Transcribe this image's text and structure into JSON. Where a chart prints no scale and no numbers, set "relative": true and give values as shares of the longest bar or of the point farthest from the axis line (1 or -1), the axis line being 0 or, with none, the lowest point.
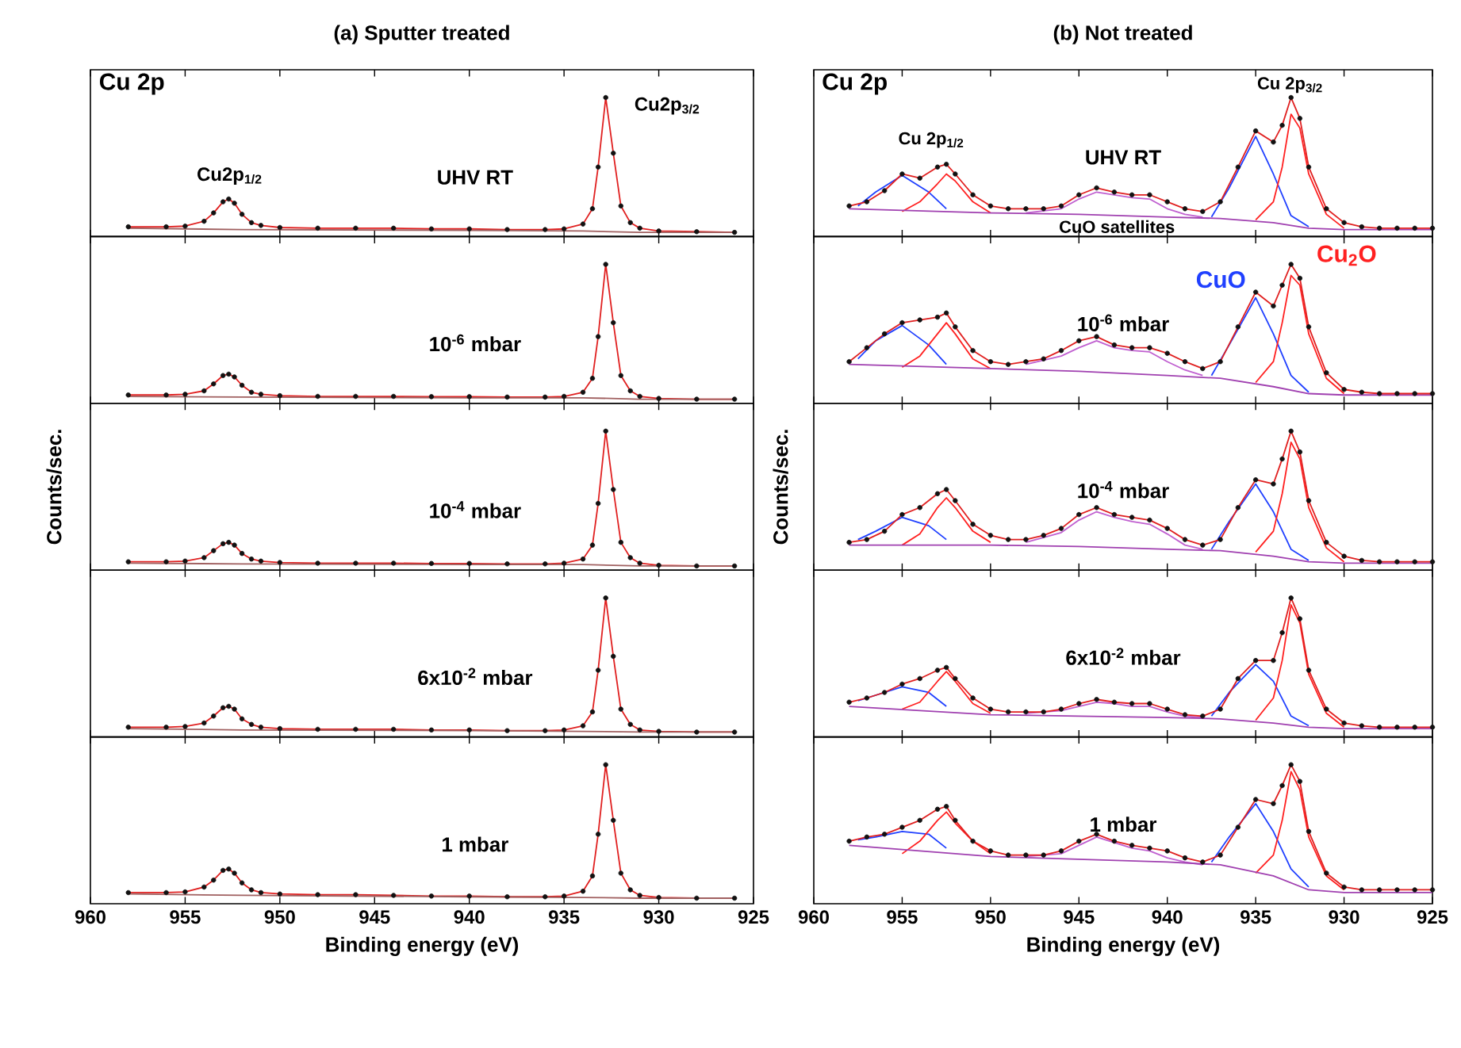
{
  "chart_data": [
    {
      "type": "line",
      "relative": true,
      "title": "(a) Sputter treated",
      "xlim": [
        960,
        925
      ],
      "xticks": [
        960,
        955,
        950,
        945,
        940,
        935,
        930,
        925
      ],
      "tick_labels": false,
      "x": [
        958,
        956,
        955,
        954,
        953.5,
        953,
        952.7,
        952.4,
        952,
        951.5,
        951,
        950,
        948,
        946,
        944,
        942,
        940,
        938,
        936,
        935,
        934,
        933.5,
        933.2,
        932.8,
        932.4,
        932,
        931.5,
        931,
        930,
        928,
        926
      ],
      "annotations": [
        "Cu 2p",
        "Cu2p$_{1/2}$",
        "Cu2p$_{3/2}$",
        "UHV RT"
      ],
      "series": [
        {
          "type": "scatter",
          "marker": "circle",
          "color": "#111111",
          "values": [
            0.07,
            0.07,
            0.075,
            0.11,
            0.17,
            0.25,
            0.27,
            0.24,
            0.16,
            0.1,
            0.08,
            0.065,
            0.06,
            0.06,
            0.06,
            0.055,
            0.055,
            0.05,
            0.05,
            0.055,
            0.09,
            0.2,
            0.5,
            1,
            0.6,
            0.22,
            0.1,
            0.06,
            0.04,
            0.035,
            0.03
          ]
        },
        {
          "color": "#e02020",
          "values": [
            0.07,
            0.07,
            0.075,
            0.11,
            0.17,
            0.25,
            0.27,
            0.24,
            0.16,
            0.1,
            0.08,
            0.065,
            0.06,
            0.06,
            0.06,
            0.055,
            0.055,
            0.05,
            0.05,
            0.055,
            0.09,
            0.2,
            0.5,
            1,
            0.6,
            0.22,
            0.1,
            0.06,
            0.04,
            0.035,
            0.03
          ]
        },
        {
          "color": "#a06060",
          "x": [
            958,
            952,
            940,
            934,
            931,
            926
          ],
          "values": [
            0.06,
            0.05,
            0.045,
            0.04,
            0.03,
            0.03
          ]
        }
      ]
    },
    {
      "type": "line",
      "relative": true,
      "xlim": [
        960,
        925
      ],
      "xticks": [
        960,
        955,
        950,
        945,
        940,
        935,
        930,
        925
      ],
      "tick_labels": false,
      "x": [
        958,
        956,
        955,
        954,
        953.5,
        953,
        952.7,
        952.4,
        952,
        951.5,
        951,
        950,
        948,
        946,
        944,
        942,
        940,
        938,
        936,
        935,
        934,
        933.5,
        933.2,
        932.8,
        932.4,
        932,
        931.5,
        931,
        930,
        928,
        926
      ],
      "annotations": [
        "10$^{-6}$ mbar"
      ],
      "series": [
        {
          "type": "scatter",
          "marker": "circle",
          "color": "#111111",
          "values": [
            0.06,
            0.06,
            0.065,
            0.09,
            0.14,
            0.2,
            0.21,
            0.19,
            0.13,
            0.08,
            0.065,
            0.055,
            0.05,
            0.05,
            0.05,
            0.048,
            0.048,
            0.045,
            0.045,
            0.05,
            0.08,
            0.18,
            0.48,
            1,
            0.58,
            0.2,
            0.09,
            0.05,
            0.035,
            0.03,
            0.03
          ]
        },
        {
          "color": "#e02020",
          "values": [
            0.06,
            0.06,
            0.065,
            0.09,
            0.14,
            0.2,
            0.21,
            0.19,
            0.13,
            0.08,
            0.065,
            0.055,
            0.05,
            0.05,
            0.05,
            0.048,
            0.048,
            0.045,
            0.045,
            0.05,
            0.08,
            0.18,
            0.48,
            1,
            0.58,
            0.2,
            0.09,
            0.05,
            0.035,
            0.03,
            0.03
          ]
        },
        {
          "color": "#a06060",
          "x": [
            958,
            952,
            940,
            934,
            931,
            926
          ],
          "values": [
            0.05,
            0.045,
            0.04,
            0.04,
            0.03,
            0.03
          ]
        }
      ]
    },
    {
      "type": "line",
      "relative": true,
      "ylabel": "Counts/sec.",
      "xlim": [
        960,
        925
      ],
      "xticks": [
        960,
        955,
        950,
        945,
        940,
        935,
        930,
        925
      ],
      "tick_labels": false,
      "x": [
        958,
        956,
        955,
        954,
        953.5,
        953,
        952.7,
        952.4,
        952,
        951.5,
        951,
        950,
        948,
        946,
        944,
        942,
        940,
        938,
        936,
        935,
        934,
        933.5,
        933.2,
        932.8,
        932.4,
        932,
        931.5,
        931,
        930,
        928,
        926
      ],
      "annotations": [
        "10$^{-4}$ mbar"
      ],
      "series": [
        {
          "type": "scatter",
          "marker": "circle",
          "color": "#111111",
          "values": [
            0.06,
            0.06,
            0.065,
            0.09,
            0.14,
            0.19,
            0.2,
            0.18,
            0.12,
            0.08,
            0.065,
            0.055,
            0.05,
            0.05,
            0.05,
            0.048,
            0.048,
            0.045,
            0.045,
            0.05,
            0.08,
            0.18,
            0.48,
            1,
            0.58,
            0.2,
            0.09,
            0.05,
            0.035,
            0.03,
            0.03
          ]
        },
        {
          "color": "#e02020",
          "values": [
            0.06,
            0.06,
            0.065,
            0.09,
            0.14,
            0.19,
            0.2,
            0.18,
            0.12,
            0.08,
            0.065,
            0.055,
            0.05,
            0.05,
            0.05,
            0.048,
            0.048,
            0.045,
            0.045,
            0.05,
            0.08,
            0.18,
            0.48,
            1,
            0.58,
            0.2,
            0.09,
            0.05,
            0.035,
            0.03,
            0.03
          ]
        },
        {
          "color": "#a06060",
          "x": [
            958,
            952,
            940,
            934,
            931,
            926
          ],
          "values": [
            0.05,
            0.045,
            0.04,
            0.04,
            0.03,
            0.03
          ]
        }
      ]
    },
    {
      "type": "line",
      "relative": true,
      "xlim": [
        960,
        925
      ],
      "xticks": [
        960,
        955,
        950,
        945,
        940,
        935,
        930,
        925
      ],
      "tick_labels": false,
      "x": [
        958,
        956,
        955,
        954,
        953.5,
        953,
        952.7,
        952.4,
        952,
        951.5,
        951,
        950,
        948,
        946,
        944,
        942,
        940,
        938,
        936,
        935,
        934,
        933.5,
        933.2,
        932.8,
        932.4,
        932,
        931.5,
        931,
        930,
        928,
        926
      ],
      "annotations": [
        "6x10$^{-2}$ mbar"
      ],
      "series": [
        {
          "type": "scatter",
          "marker": "circle",
          "color": "#111111",
          "values": [
            0.07,
            0.07,
            0.075,
            0.1,
            0.15,
            0.21,
            0.22,
            0.2,
            0.13,
            0.09,
            0.07,
            0.06,
            0.055,
            0.055,
            0.055,
            0.05,
            0.05,
            0.045,
            0.045,
            0.05,
            0.08,
            0.18,
            0.48,
            1,
            0.58,
            0.2,
            0.09,
            0.05,
            0.04,
            0.035,
            0.035
          ]
        },
        {
          "color": "#e02020",
          "values": [
            0.07,
            0.07,
            0.075,
            0.1,
            0.15,
            0.21,
            0.22,
            0.2,
            0.13,
            0.09,
            0.07,
            0.06,
            0.055,
            0.055,
            0.055,
            0.05,
            0.05,
            0.045,
            0.045,
            0.05,
            0.08,
            0.18,
            0.48,
            1,
            0.58,
            0.2,
            0.09,
            0.05,
            0.04,
            0.035,
            0.035
          ]
        },
        {
          "color": "#a06060",
          "x": [
            958,
            952,
            940,
            934,
            931,
            926
          ],
          "values": [
            0.06,
            0.05,
            0.045,
            0.04,
            0.035,
            0.035
          ]
        }
      ]
    },
    {
      "type": "line",
      "relative": true,
      "xlabel": "Binding energy (eV)",
      "xlim": [
        960,
        925
      ],
      "xticks": [
        960,
        955,
        950,
        945,
        940,
        935,
        930,
        925
      ],
      "tick_labels": "x",
      "x": [
        958,
        956,
        955,
        954,
        953.5,
        953,
        952.7,
        952.4,
        952,
        951.5,
        951,
        950,
        948,
        946,
        944,
        942,
        940,
        938,
        936,
        935,
        934,
        933.5,
        933.2,
        932.8,
        932.4,
        932,
        931.5,
        931,
        930,
        928,
        926
      ],
      "annotations": [
        "1 mbar"
      ],
      "series": [
        {
          "type": "scatter",
          "marker": "circle",
          "color": "#111111",
          "values": [
            0.08,
            0.08,
            0.085,
            0.12,
            0.17,
            0.24,
            0.25,
            0.22,
            0.15,
            0.1,
            0.08,
            0.07,
            0.065,
            0.065,
            0.06,
            0.055,
            0.055,
            0.05,
            0.05,
            0.055,
            0.09,
            0.2,
            0.5,
            1,
            0.6,
            0.22,
            0.1,
            0.06,
            0.045,
            0.04,
            0.04
          ]
        },
        {
          "color": "#e02020",
          "values": [
            0.08,
            0.08,
            0.085,
            0.12,
            0.17,
            0.24,
            0.25,
            0.22,
            0.15,
            0.1,
            0.08,
            0.07,
            0.065,
            0.065,
            0.06,
            0.055,
            0.055,
            0.05,
            0.05,
            0.055,
            0.09,
            0.2,
            0.5,
            1,
            0.6,
            0.22,
            0.1,
            0.06,
            0.045,
            0.04,
            0.04
          ]
        },
        {
          "color": "#a06060",
          "x": [
            958,
            952,
            940,
            934,
            931,
            926
          ],
          "values": [
            0.07,
            0.06,
            0.05,
            0.045,
            0.04,
            0.04
          ]
        }
      ]
    },
    {
      "type": "line",
      "relative": true,
      "title": "(b) Not treated",
      "xlim": [
        960,
        925
      ],
      "xticks": [
        960,
        955,
        950,
        945,
        940,
        935,
        930,
        925
      ],
      "tick_labels": false,
      "x": [
        958,
        957,
        956,
        955,
        954,
        953,
        952.5,
        952,
        951,
        950,
        949,
        948,
        947,
        946,
        945,
        944,
        943,
        942,
        941,
        940,
        939,
        938,
        937,
        936,
        935,
        934,
        933.5,
        933,
        932.5,
        932,
        931,
        930,
        929,
        928,
        927,
        926,
        925
      ],
      "annotations": [
        "Cu 2p",
        "Cu 2p$_{1/2}$",
        "Cu 2p$_{3/2}$",
        "CuO satellites",
        "UHV RT"
      ],
      "series": [
        {
          "color": "#2040ff",
          "x": [
            957.5,
            956.5,
            955,
            953.5,
            952.5,
            948,
            937.5,
            936.5,
            935,
            934,
            933,
            932
          ],
          "values": [
            0.22,
            0.32,
            0.44,
            0.32,
            0.2,
            null,
            0.14,
            0.35,
            0.72,
            0.45,
            0.15,
            0.07
          ]
        },
        {
          "color": "#ff2020",
          "x": [
            955,
            954,
            953,
            952.5,
            952,
            951,
            950,
            948,
            935,
            934,
            933.5,
            933,
            932.5,
            932,
            931,
            930
          ],
          "values": [
            0.18,
            0.25,
            0.38,
            0.45,
            0.4,
            0.25,
            0.17,
            null,
            0.12,
            0.25,
            0.5,
            0.88,
            0.78,
            0.45,
            0.16,
            0.06
          ]
        },
        {
          "color": "#c060d0",
          "x": [
            948,
            946,
            945,
            944,
            943,
            942,
            941,
            940,
            939,
            938
          ],
          "values": [
            0.17,
            0.2,
            0.27,
            0.32,
            0.3,
            0.28,
            0.27,
            0.2,
            0.16,
            0.14
          ]
        },
        {
          "color": "#a040b0",
          "x": [
            958,
            950,
            945,
            940,
            937,
            934,
            932,
            930,
            925
          ],
          "values": [
            0.2,
            0.17,
            0.16,
            0.14,
            0.13,
            0.1,
            0.06,
            0.05,
            0.05
          ]
        },
        {
          "type": "scatter",
          "marker": "circle",
          "color": "#111111",
          "values": [
            0.22,
            0.25,
            0.33,
            0.45,
            0.42,
            0.5,
            0.52,
            0.45,
            0.3,
            0.22,
            0.2,
            0.2,
            0.2,
            0.22,
            0.3,
            0.35,
            0.32,
            0.3,
            0.3,
            0.25,
            0.2,
            0.18,
            0.25,
            0.5,
            0.76,
            0.68,
            0.8,
            1,
            0.85,
            0.5,
            0.2,
            0.1,
            0.07,
            0.06,
            0.06,
            0.06,
            0.06
          ]
        },
        {
          "color": "#e02020",
          "values": [
            0.22,
            0.25,
            0.33,
            0.45,
            0.42,
            0.5,
            0.52,
            0.45,
            0.3,
            0.22,
            0.2,
            0.2,
            0.2,
            0.22,
            0.3,
            0.35,
            0.32,
            0.3,
            0.3,
            0.25,
            0.2,
            0.18,
            0.25,
            0.5,
            0.76,
            0.68,
            0.8,
            1,
            0.85,
            0.5,
            0.2,
            0.1,
            0.07,
            0.06,
            0.06,
            0.06,
            0.06
          ]
        }
      ]
    },
    {
      "type": "line",
      "relative": true,
      "xlim": [
        960,
        925
      ],
      "xticks": [
        960,
        955,
        950,
        945,
        940,
        935,
        930,
        925
      ],
      "tick_labels": false,
      "x": [
        958,
        957,
        956,
        955,
        954,
        953,
        952.5,
        952,
        951,
        950,
        949,
        948,
        947,
        946,
        945,
        944,
        943,
        942,
        941,
        940,
        939,
        938,
        937,
        936,
        935,
        934,
        933.5,
        933,
        932.5,
        932,
        931,
        930,
        929,
        928,
        927,
        926,
        925
      ],
      "annotations": [
        "10$^{-6}$ mbar"
      ],
      "series": [
        {
          "name": "CuO",
          "color": "#2040ff",
          "x": [
            957.5,
            956.5,
            955,
            953.5,
            952.5,
            948,
            937.5,
            936.5,
            935,
            934,
            933,
            932
          ],
          "values": [
            0.32,
            0.45,
            0.56,
            0.42,
            0.28,
            null,
            0.2,
            0.42,
            0.76,
            0.5,
            0.2,
            0.08
          ]
        },
        {
          "name": "Cu$_{2}$O",
          "color": "#ff2020",
          "x": [
            955,
            954,
            953,
            952.5,
            952,
            951,
            950,
            948,
            935,
            934,
            933.5,
            933,
            932.5,
            932,
            931,
            930
          ],
          "values": [
            0.26,
            0.34,
            0.5,
            0.58,
            0.5,
            0.32,
            0.25,
            null,
            0.15,
            0.3,
            0.58,
            0.92,
            0.85,
            0.5,
            0.18,
            0.07
          ]
        },
        {
          "color": "#c060d0",
          "x": [
            948,
            946,
            945,
            944,
            943,
            942,
            941,
            940,
            939,
            938
          ],
          "values": [
            0.28,
            0.34,
            0.4,
            0.45,
            0.4,
            0.38,
            0.37,
            0.3,
            0.24,
            0.2
          ]
        },
        {
          "color": "#a040b0",
          "x": [
            958,
            950,
            945,
            940,
            937,
            934,
            932,
            930,
            925
          ],
          "values": [
            0.28,
            0.25,
            0.23,
            0.2,
            0.18,
            0.12,
            0.07,
            0.06,
            0.06
          ]
        },
        {
          "type": "scatter",
          "marker": "circle",
          "color": "#111111",
          "values": [
            0.3,
            0.4,
            0.5,
            0.58,
            0.6,
            0.62,
            0.65,
            0.55,
            0.38,
            0.3,
            0.28,
            0.3,
            0.32,
            0.38,
            0.45,
            0.48,
            0.42,
            0.4,
            0.4,
            0.36,
            0.3,
            0.25,
            0.3,
            0.55,
            0.8,
            0.7,
            0.85,
            1,
            0.9,
            0.55,
            0.22,
            0.1,
            0.08,
            0.07,
            0.07,
            0.07,
            0.07
          ]
        },
        {
          "color": "#e02020",
          "values": [
            0.3,
            0.4,
            0.5,
            0.58,
            0.6,
            0.62,
            0.65,
            0.55,
            0.38,
            0.3,
            0.28,
            0.3,
            0.32,
            0.38,
            0.45,
            0.48,
            0.42,
            0.4,
            0.4,
            0.36,
            0.3,
            0.25,
            0.3,
            0.55,
            0.8,
            0.7,
            0.85,
            1,
            0.9,
            0.55,
            0.22,
            0.1,
            0.08,
            0.07,
            0.07,
            0.07,
            0.07
          ]
        }
      ]
    },
    {
      "type": "line",
      "relative": true,
      "ylabel": "Counts/sec.",
      "xlim": [
        960,
        925
      ],
      "xticks": [
        960,
        955,
        950,
        945,
        940,
        935,
        930,
        925
      ],
      "tick_labels": false,
      "x": [
        958,
        957,
        956,
        955,
        954,
        953,
        952.5,
        952,
        951,
        950,
        949,
        948,
        947,
        946,
        945,
        944,
        943,
        942,
        941,
        940,
        939,
        938,
        937,
        936,
        935,
        934,
        933.5,
        933,
        932.5,
        932,
        931,
        930,
        929,
        928,
        927,
        926,
        925
      ],
      "annotations": [
        "10$^{-4}$ mbar"
      ],
      "series": [
        {
          "color": "#2040ff",
          "x": [
            957.5,
            956.5,
            955,
            953.5,
            952.5,
            948,
            937.5,
            936.5,
            935,
            934,
            933,
            932
          ],
          "values": [
            0.22,
            0.28,
            0.38,
            0.32,
            0.22,
            null,
            0.15,
            0.35,
            0.62,
            0.42,
            0.15,
            0.07
          ]
        },
        {
          "color": "#ff2020",
          "x": [
            955,
            954,
            953,
            952.5,
            952,
            951,
            950,
            948,
            935,
            934,
            933.5,
            933,
            932.5,
            932,
            931,
            930
          ],
          "values": [
            0.18,
            0.26,
            0.45,
            0.52,
            0.45,
            0.28,
            0.2,
            null,
            0.13,
            0.28,
            0.55,
            0.92,
            0.8,
            0.45,
            0.16,
            0.06
          ]
        },
        {
          "color": "#c060d0",
          "x": [
            948,
            946,
            945,
            944,
            943,
            942,
            941,
            940,
            939,
            938
          ],
          "values": [
            0.2,
            0.27,
            0.36,
            0.42,
            0.38,
            0.35,
            0.33,
            0.26,
            0.18,
            0.15
          ]
        },
        {
          "color": "#a040b0",
          "x": [
            958,
            950,
            945,
            940,
            937,
            934,
            932,
            930,
            925
          ],
          "values": [
            0.18,
            0.18,
            0.17,
            0.15,
            0.14,
            0.1,
            0.06,
            0.05,
            0.05
          ]
        },
        {
          "type": "scatter",
          "marker": "circle",
          "color": "#111111",
          "values": [
            0.2,
            0.22,
            0.28,
            0.4,
            0.45,
            0.55,
            0.58,
            0.5,
            0.33,
            0.25,
            0.22,
            0.22,
            0.25,
            0.3,
            0.4,
            0.45,
            0.4,
            0.38,
            0.36,
            0.3,
            0.22,
            0.18,
            0.22,
            0.45,
            0.65,
            0.62,
            0.8,
            1,
            0.85,
            0.5,
            0.2,
            0.1,
            0.07,
            0.06,
            0.06,
            0.06,
            0.06
          ]
        },
        {
          "color": "#e02020",
          "values": [
            0.2,
            0.22,
            0.28,
            0.4,
            0.45,
            0.55,
            0.58,
            0.5,
            0.33,
            0.25,
            0.22,
            0.22,
            0.25,
            0.3,
            0.4,
            0.45,
            0.4,
            0.38,
            0.36,
            0.3,
            0.22,
            0.18,
            0.22,
            0.45,
            0.65,
            0.62,
            0.8,
            1,
            0.85,
            0.5,
            0.2,
            0.1,
            0.07,
            0.06,
            0.06,
            0.06,
            0.06
          ]
        }
      ]
    },
    {
      "type": "line",
      "relative": true,
      "xlim": [
        960,
        925
      ],
      "xticks": [
        960,
        955,
        950,
        945,
        940,
        935,
        930,
        925
      ],
      "tick_labels": false,
      "x": [
        958,
        957,
        956,
        955,
        954,
        953,
        952.5,
        952,
        951,
        950,
        949,
        948,
        947,
        946,
        945,
        944,
        943,
        942,
        941,
        940,
        939,
        938,
        937,
        936,
        935,
        934,
        933.5,
        933,
        932.5,
        932,
        931,
        930,
        929,
        928,
        927,
        926,
        925
      ],
      "annotations": [
        "6x10$^{-2}$ mbar"
      ],
      "series": [
        {
          "color": "#2040ff",
          "x": [
            957.5,
            956.5,
            955,
            953.5,
            952.5,
            948,
            937.5,
            936.5,
            935,
            934,
            933,
            932
          ],
          "values": [
            0.26,
            0.3,
            0.36,
            0.32,
            0.22,
            null,
            0.15,
            0.32,
            0.52,
            0.4,
            0.15,
            0.08
          ]
        },
        {
          "color": "#ff2020",
          "x": [
            955,
            954,
            953,
            952.5,
            952,
            951,
            950,
            948,
            935,
            934,
            933.5,
            933,
            932.5,
            932,
            931,
            930
          ],
          "values": [
            0.2,
            0.25,
            0.4,
            0.47,
            0.4,
            0.24,
            0.17,
            null,
            0.12,
            0.28,
            0.55,
            0.95,
            0.82,
            0.45,
            0.17,
            0.07
          ]
        },
        {
          "color": "#c060d0",
          "x": [
            948,
            946,
            945,
            944,
            943,
            942,
            941,
            940,
            939,
            938
          ],
          "values": [
            0.17,
            0.19,
            0.22,
            0.25,
            0.24,
            0.22,
            0.22,
            0.18,
            0.15,
            0.14
          ]
        },
        {
          "color": "#a040b0",
          "x": [
            958,
            950,
            945,
            940,
            937,
            934,
            932,
            930,
            925
          ],
          "values": [
            0.22,
            0.16,
            0.15,
            0.14,
            0.13,
            0.1,
            0.07,
            0.06,
            0.06
          ]
        },
        {
          "type": "scatter",
          "marker": "circle",
          "color": "#111111",
          "values": [
            0.25,
            0.28,
            0.32,
            0.38,
            0.42,
            0.48,
            0.5,
            0.42,
            0.28,
            0.2,
            0.18,
            0.18,
            0.18,
            0.2,
            0.24,
            0.27,
            0.25,
            0.24,
            0.24,
            0.2,
            0.16,
            0.15,
            0.2,
            0.42,
            0.55,
            0.55,
            0.75,
            1,
            0.85,
            0.48,
            0.2,
            0.1,
            0.08,
            0.07,
            0.07,
            0.07,
            0.07
          ]
        },
        {
          "color": "#e02020",
          "values": [
            0.25,
            0.28,
            0.32,
            0.38,
            0.42,
            0.48,
            0.5,
            0.42,
            0.28,
            0.2,
            0.18,
            0.18,
            0.18,
            0.2,
            0.24,
            0.27,
            0.25,
            0.24,
            0.24,
            0.2,
            0.16,
            0.15,
            0.2,
            0.42,
            0.55,
            0.55,
            0.75,
            1,
            0.85,
            0.48,
            0.2,
            0.1,
            0.08,
            0.07,
            0.07,
            0.07,
            0.07
          ]
        }
      ]
    },
    {
      "type": "line",
      "relative": true,
      "xlabel": "Binding energy (eV)",
      "xlim": [
        960,
        925
      ],
      "xticks": [
        960,
        955,
        950,
        945,
        940,
        935,
        930,
        925
      ],
      "tick_labels": "x",
      "x": [
        958,
        957,
        956,
        955,
        954,
        953,
        952.5,
        952,
        951,
        950,
        949,
        948,
        947,
        946,
        945,
        944,
        943,
        942,
        941,
        940,
        939,
        938,
        937,
        936,
        935,
        934,
        933.5,
        933,
        932.5,
        932,
        931,
        930,
        929,
        928,
        927,
        926,
        925
      ],
      "annotations": [
        "1 mbar"
      ],
      "series": [
        {
          "color": "#2040ff",
          "x": [
            957.5,
            956.5,
            955,
            953.5,
            952.5,
            948,
            937.5,
            936.5,
            935,
            934,
            933,
            932
          ],
          "values": [
            0.46,
            0.48,
            0.52,
            0.5,
            0.4,
            null,
            0.3,
            0.48,
            0.72,
            0.52,
            0.25,
            0.12
          ]
        },
        {
          "color": "#ff2020",
          "x": [
            955,
            954,
            953,
            952.5,
            952,
            951,
            950,
            948,
            935,
            934,
            933.5,
            933,
            932.5,
            932,
            931,
            930
          ],
          "values": [
            0.36,
            0.45,
            0.6,
            0.66,
            0.58,
            0.45,
            0.36,
            null,
            0.22,
            0.35,
            0.6,
            0.95,
            0.82,
            0.48,
            0.2,
            0.1
          ]
        },
        {
          "color": "#c060d0",
          "x": [
            948,
            946,
            945,
            944,
            943,
            942,
            941,
            940,
            939,
            938
          ],
          "values": [
            0.34,
            0.36,
            0.42,
            0.48,
            0.44,
            0.4,
            0.38,
            0.33,
            0.3,
            0.28
          ]
        },
        {
          "color": "#a040b0",
          "x": [
            958,
            950,
            945,
            940,
            937,
            934,
            932,
            930,
            925
          ],
          "values": [
            0.42,
            0.34,
            0.32,
            0.3,
            0.28,
            0.2,
            0.1,
            0.08,
            0.08
          ]
        },
        {
          "type": "scatter",
          "marker": "circle",
          "color": "#111111",
          "values": [
            0.45,
            0.48,
            0.5,
            0.55,
            0.6,
            0.68,
            0.7,
            0.6,
            0.45,
            0.38,
            0.35,
            0.35,
            0.35,
            0.38,
            0.45,
            0.5,
            0.45,
            0.42,
            0.4,
            0.38,
            0.33,
            0.3,
            0.35,
            0.55,
            0.75,
            0.72,
            0.85,
            1,
            0.88,
            0.52,
            0.22,
            0.12,
            0.1,
            0.1,
            0.1,
            0.1,
            0.1
          ]
        },
        {
          "color": "#e02020",
          "values": [
            0.45,
            0.48,
            0.5,
            0.55,
            0.6,
            0.68,
            0.7,
            0.6,
            0.45,
            0.38,
            0.35,
            0.35,
            0.35,
            0.38,
            0.45,
            0.5,
            0.45,
            0.42,
            0.4,
            0.38,
            0.33,
            0.3,
            0.35,
            0.55,
            0.75,
            0.72,
            0.85,
            1,
            0.88,
            0.52,
            0.22,
            0.12,
            0.1,
            0.1,
            0.1,
            0.1,
            0.1
          ]
        }
      ]
    }
  ]
}
